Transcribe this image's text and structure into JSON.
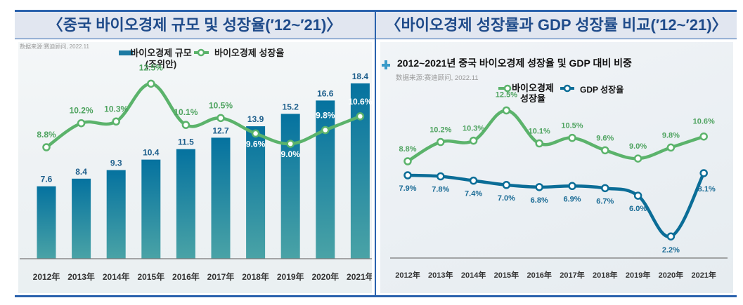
{
  "headers": {
    "left_title": "〈중국 바이오경제 규모 및 성장율(′12~′21)〉",
    "right_title": "〈바이오경제 성장률과 GDP 성장률 비교(′12~′21)〉"
  },
  "colors": {
    "frame": "#2a62ad",
    "header_bg": "#e1e6f0",
    "header_text": "#1f4b8a",
    "bar_top": "#05729f",
    "bar_bottom": "#4aa3a6",
    "bio_line": "#5bb36b",
    "bio_label": "#4ea35f",
    "gdp_line": "#0b6d97",
    "gdp_label": "#1a6b95",
    "bar_label": "#1e5f8c",
    "axis_label": "#333333",
    "source_text": "#9a9a9a"
  },
  "chart_data": [
    {
      "type": "bar",
      "title": "〈중국 바이오경제 규모 및 성장율(′12~′21)〉",
      "source_note": "数据来源:赛迪顾问, 2022.11",
      "categories": [
        "2012年",
        "2013年",
        "2014年",
        "2015年",
        "2016年",
        "2017年",
        "2018年",
        "2019年",
        "2020年",
        "2021年"
      ],
      "legend": [
        "바이오경제 규모 (조위안)",
        "바이오경제 성장율"
      ],
      "legend_position": "top",
      "grid": false,
      "series": [
        {
          "name": "바이오경제 규모 (조위안)",
          "kind": "bar",
          "values": [
            7.6,
            8.4,
            9.3,
            10.4,
            11.5,
            12.7,
            13.9,
            15.2,
            16.6,
            18.4
          ],
          "labels": [
            "7.6",
            "8.4",
            "9.3",
            "10.4",
            "11.5",
            "12.7",
            "13.9",
            "15.2",
            "16.6",
            "18.4"
          ]
        },
        {
          "name": "바이오경제 성장율",
          "kind": "line",
          "unit": "%",
          "values": [
            8.8,
            10.2,
            10.3,
            12.5,
            10.1,
            10.5,
            9.6,
            9.0,
            9.8,
            10.6
          ],
          "labels": [
            "8.8%",
            "10.2%",
            "10.3%",
            "12.5%",
            "10.1%",
            "10.5%",
            "9.6%",
            "9.0%",
            "9.8%",
            "10.6%"
          ]
        }
      ],
      "bar_ylim": [
        0,
        19.5
      ],
      "line_ylim": [
        0,
        14.5
      ]
    },
    {
      "type": "line",
      "title": "2012~2021년 중국 바이오경제 성장율 및 GDP 대비 비중",
      "source_note": "数据来源:赛迪顾问, 2022.11",
      "categories": [
        "2012年",
        "2013年",
        "2014年",
        "2015年",
        "2016年",
        "2017年",
        "2018年",
        "2019年",
        "2020年",
        "2021年"
      ],
      "legend": [
        "바이오경제 성장율",
        "GDP 성장율"
      ],
      "legend_position": "top",
      "grid": false,
      "series": [
        {
          "name": "바이오경제 성장율",
          "unit": "%",
          "values": [
            8.8,
            10.2,
            10.3,
            12.5,
            10.1,
            10.5,
            9.6,
            9.0,
            9.8,
            10.6
          ],
          "labels": [
            "8.8%",
            "10.2%",
            "10.3%",
            "12.5%",
            "10.1%",
            "10.5%",
            "9.6%",
            "9.0%",
            "9.8%",
            "10.6%"
          ]
        },
        {
          "name": "GDP 성장율",
          "unit": "%",
          "values": [
            7.9,
            7.8,
            7.4,
            7.0,
            6.8,
            6.9,
            6.7,
            6.0,
            2.2,
            8.1
          ],
          "labels": [
            "7.9%",
            "7.8%",
            "7.4%",
            "7.0%",
            "6.8%",
            "6.9%",
            "6.7%",
            "6.0%",
            "2.2%",
            "8.1%"
          ]
        }
      ],
      "ylim": [
        0,
        14
      ]
    }
  ],
  "left_chart": {
    "source_note": "数据来源:赛迪顾问, 2022.11",
    "legend_bar_label_line1": "바이오경제 규모",
    "legend_bar_label_line2": "(조위안)",
    "legend_line_label": "바이오경제 성장율"
  },
  "right_chart": {
    "title": "2012~2021년 중국 바이오경제 성장율 및 GDP 대비 비중",
    "source_note": "数据来源:赛迪顾问, 2022.11",
    "legend_bio_line1": "바이오경제",
    "legend_bio_line2": "성장율",
    "legend_gdp": "GDP 성장율"
  }
}
